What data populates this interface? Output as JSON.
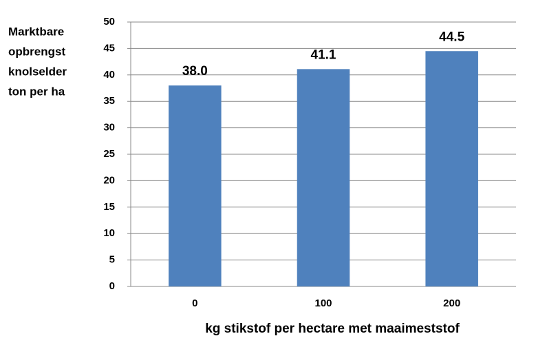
{
  "chart_data": {
    "type": "bar",
    "ylabel": [
      "Marktbare",
      "opbrengst",
      "knolselder",
      "ton per ha"
    ],
    "xlabel": "kg stikstof per hectare met maaimeststof",
    "categories": [
      "0",
      "100",
      "200"
    ],
    "values": [
      38.0,
      41.1,
      44.5
    ],
    "value_labels": [
      "38.0",
      "41.1",
      "44.5"
    ],
    "color": "#4f81bd",
    "ylim": [
      0,
      50
    ],
    "yticks": [
      0,
      5,
      10,
      15,
      20,
      25,
      30,
      35,
      40,
      45,
      50
    ],
    "grid": true
  }
}
